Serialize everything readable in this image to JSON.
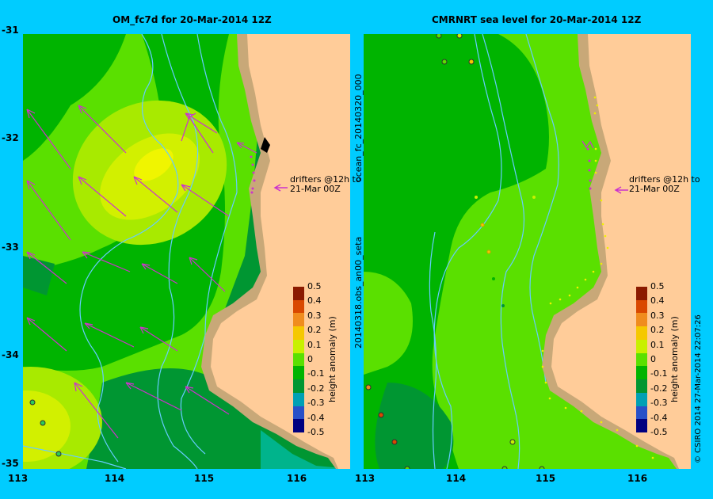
{
  "left_panel": {
    "title": "OM_fc7d for 20-Mar-2014 12Z",
    "drifter_label_1": "drifters @12h to",
    "drifter_label_2": "21-Mar 00Z"
  },
  "right_panel": {
    "title": "CMRNRT sea level  for 20-Mar-2014 12Z",
    "drifter_label_1": "drifters @12h to",
    "drifter_label_2": "21-Mar 00Z",
    "side_label_top": "ocean_fc_20140320_000",
    "side_label_bottom": "20140318.obs_an00_seta"
  },
  "y_axis": {
    "ticks": [
      "-31",
      "-32",
      "-33",
      "-34",
      "-35"
    ]
  },
  "x_axis_left": {
    "ticks": [
      "113",
      "115",
      "116"
    ]
  },
  "x_axis_right": {
    "ticks": [
      "113",
      "114",
      "115",
      "116"
    ]
  },
  "x_axis_left_extra": "114",
  "colorbar": {
    "title": "height anomaly (m)",
    "levels": [
      "0.5",
      "0.4",
      "0.3",
      "0.2",
      "0.1",
      "0",
      "-0.1",
      "-0.2",
      "-0.3",
      "-0.4",
      "-0.5"
    ],
    "colors": [
      "#8b1a00",
      "#d94800",
      "#f08c1e",
      "#f5c800",
      "#c8f000",
      "#5ae000",
      "#00b400",
      "#009632",
      "#00a0b4",
      "#2850c8",
      "#000080"
    ]
  },
  "copyright": "© CSIRO 2014   27-Mar-2014 22:07:26",
  "colors": {
    "background": "#00ccff",
    "land": "#ffcc99",
    "coast": "#c8a878",
    "arrow": "#cc33cc"
  }
}
